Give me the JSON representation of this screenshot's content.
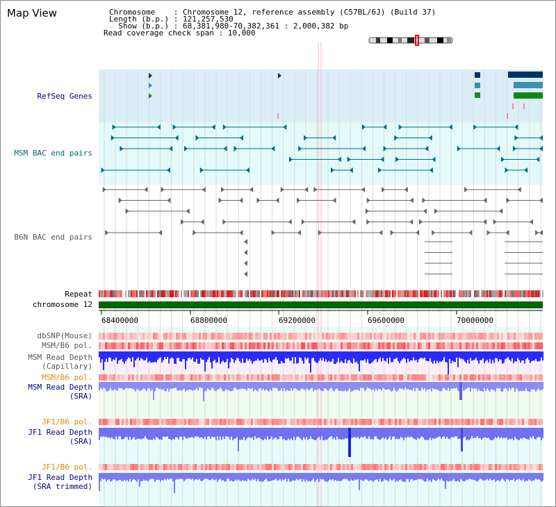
{
  "header": {
    "title": "Map View",
    "info_lines": [
      "Chromosome    : Chromosome 12, reference assembly (C57BL/6J) (Build 37)",
      "Length (b.p.) : 121,257,530",
      "  Show (b.p.) : 68,381,980-70,382,361 : 2,000,382 bp",
      "Read coverage check span : 10,000"
    ]
  },
  "tracks": {
    "refseq": "RefSeq Genes",
    "msm_bac": "MSM BAC end pairs",
    "b6n_bac": "B6N BAC end pairs",
    "repeat": "Repeat",
    "chromosome": "chromosome 12",
    "dbsnp": "dbSNP(Mouse)",
    "msm_b6_pol_1": "MSM/B6 pol.",
    "msm_depth_cap_1": "MSM Read Depth",
    "msm_depth_cap_2": "(Capillary)",
    "msm_b6_pol_2": "MSM/B6 pol.",
    "msm_depth_sra_1": "MSM Read Depth",
    "msm_depth_sra_2": "(SRA)",
    "jf1_b6_pol_1": "JF1/B6 pol.",
    "jf1_depth_sra_1": "JF1 Read Depth",
    "jf1_depth_sra_2": "(SRA)",
    "jf1_b6_pol_2": "JF1/B6 pol.",
    "jf1_depth_trim_1": "JF1 Read Depth",
    "jf1_depth_trim_2": "(SRA trimmed)"
  },
  "axis": {
    "ticks": [
      "68400000",
      "68800000",
      "69200000",
      "69600000",
      "70000000"
    ]
  },
  "colors": {
    "refseq_bg": "#dbeef8",
    "msm_bac_bg": "#e2fafa",
    "track_bg": "#e8fbfb",
    "chromosome": "#006600",
    "msm_bac": "#006b8a",
    "b6n_bac": "#666666",
    "depth": "#3333ff",
    "pol": "#ff7070"
  }
}
